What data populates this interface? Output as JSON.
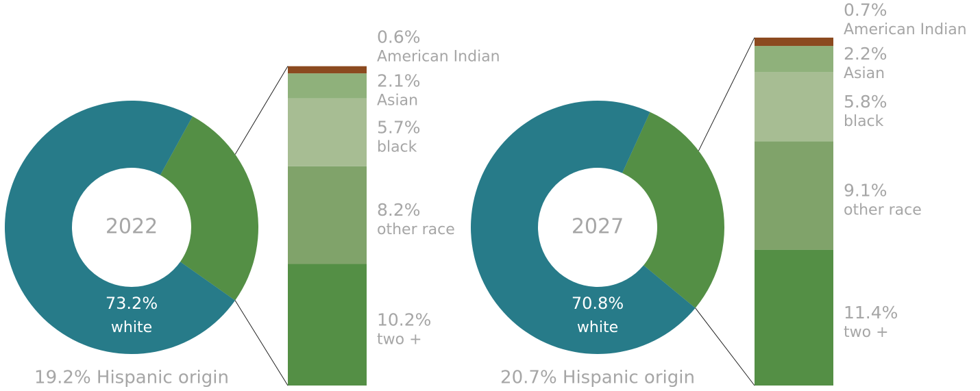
{
  "chart_data": [
    {
      "type": "donut-bar",
      "center_label": "2022",
      "note": "19.2% Hispanic origin",
      "categories": [
        "white",
        "two +",
        "other race",
        "black",
        "Asian",
        "American Indian"
      ],
      "values": [
        73.2,
        10.2,
        8.2,
        5.7,
        2.1,
        0.6
      ],
      "value_labels": [
        "73.2%",
        "10.2%",
        "8.2%",
        "5.7%",
        "2.1%",
        "0.6%"
      ],
      "colors": [
        "#277b89",
        "#548f45",
        "#80a36a",
        "#a7bd93",
        "#8fb17b",
        "#8b4a1f"
      ],
      "breakdown_color": "#548f45"
    },
    {
      "type": "donut-bar",
      "center_label": "2027",
      "note": "20.7% Hispanic origin",
      "categories": [
        "white",
        "two +",
        "other race",
        "black",
        "Asian",
        "American Indian"
      ],
      "values": [
        70.8,
        11.4,
        9.1,
        5.8,
        2.2,
        0.7
      ],
      "value_labels": [
        "70.8%",
        "11.4%",
        "9.1%",
        "5.8%",
        "2.2%",
        "0.7%"
      ],
      "colors": [
        "#277b89",
        "#548f45",
        "#80a36a",
        "#a7bd93",
        "#8fb17b",
        "#8b4a1f"
      ],
      "breakdown_color": "#548f45"
    }
  ]
}
